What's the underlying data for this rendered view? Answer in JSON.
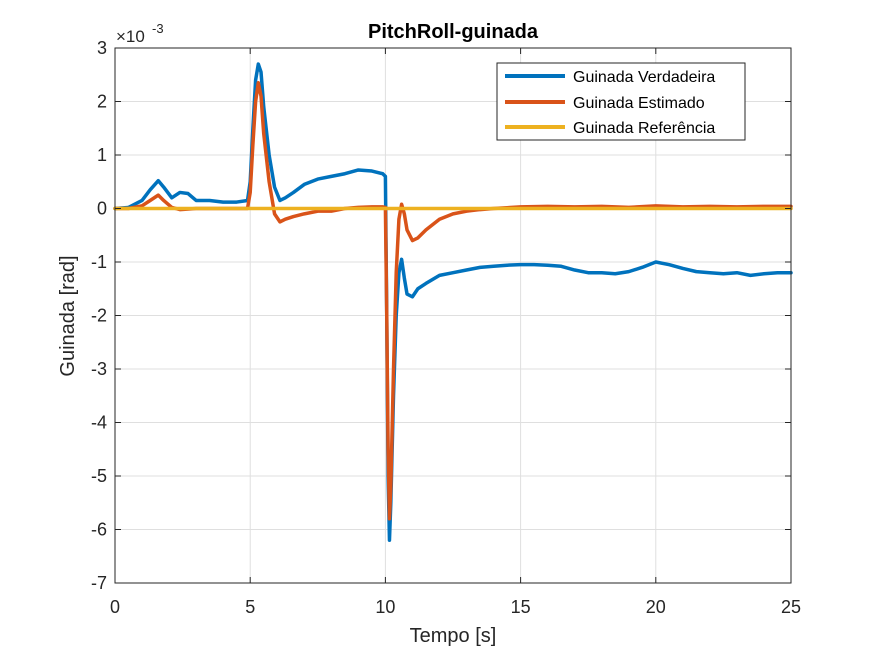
{
  "chart_data": {
    "type": "line",
    "title": "PitchRoll-guinada",
    "xlabel": "Tempo [s]",
    "ylabel": "Guinada [rad]",
    "y_multiplier": "×10",
    "y_multiplier_exponent": "-3",
    "xlim": [
      0,
      25
    ],
    "ylim": [
      -7,
      3
    ],
    "x_ticks": [
      "0",
      "5",
      "10",
      "15",
      "20",
      "25"
    ],
    "y_ticks": [
      "-7",
      "-6",
      "-5",
      "-4",
      "-3",
      "-2",
      "-1",
      "0",
      "1",
      "2",
      "3"
    ],
    "grid": true,
    "legend_position": "top-right",
    "series": [
      {
        "name": "Guinada Verdadeira",
        "color": "#0072BD",
        "x": [
          0,
          0.5,
          1.0,
          1.3,
          1.6,
          1.8,
          2.1,
          2.4,
          2.7,
          3.0,
          3.5,
          4.0,
          4.5,
          4.9,
          5.0,
          5.1,
          5.2,
          5.3,
          5.4,
          5.5,
          5.7,
          5.9,
          6.1,
          6.3,
          6.6,
          7.0,
          7.5,
          8.0,
          8.5,
          9.0,
          9.5,
          9.9,
          10.0,
          10.05,
          10.1,
          10.15,
          10.2,
          10.3,
          10.4,
          10.5,
          10.6,
          10.7,
          10.8,
          11.0,
          11.2,
          11.5,
          12.0,
          12.5,
          13.0,
          13.5,
          14.0,
          14.5,
          15.0,
          15.5,
          16.0,
          16.5,
          17.0,
          17.5,
          18.0,
          18.5,
          19.0,
          19.5,
          20.0,
          20.5,
          21.0,
          21.5,
          22.0,
          22.5,
          23.0,
          23.5,
          24.0,
          24.5,
          25.0
        ],
        "values": [
          0,
          0.02,
          0.15,
          0.35,
          0.52,
          0.4,
          0.2,
          0.3,
          0.28,
          0.15,
          0.15,
          0.12,
          0.12,
          0.15,
          0.5,
          1.5,
          2.4,
          2.7,
          2.55,
          1.9,
          1.0,
          0.4,
          0.15,
          0.2,
          0.3,
          0.45,
          0.55,
          0.6,
          0.65,
          0.72,
          0.7,
          0.65,
          0.6,
          -2.0,
          -5.0,
          -6.2,
          -5.5,
          -3.5,
          -2.0,
          -1.2,
          -0.95,
          -1.3,
          -1.6,
          -1.65,
          -1.5,
          -1.4,
          -1.25,
          -1.2,
          -1.15,
          -1.1,
          -1.08,
          -1.06,
          -1.05,
          -1.05,
          -1.06,
          -1.08,
          -1.15,
          -1.2,
          -1.2,
          -1.22,
          -1.18,
          -1.1,
          -1.0,
          -1.05,
          -1.12,
          -1.18,
          -1.2,
          -1.22,
          -1.2,
          -1.25,
          -1.22,
          -1.2,
          -1.2
        ]
      },
      {
        "name": "Guinada Estimado",
        "color": "#D95319",
        "x": [
          0,
          0.5,
          1.0,
          1.3,
          1.6,
          1.8,
          2.1,
          2.4,
          3.0,
          4.0,
          4.9,
          5.0,
          5.1,
          5.2,
          5.3,
          5.4,
          5.5,
          5.7,
          5.9,
          6.1,
          6.3,
          6.6,
          7.0,
          7.5,
          8.0,
          8.5,
          9.0,
          9.5,
          9.9,
          10.0,
          10.05,
          10.1,
          10.15,
          10.2,
          10.3,
          10.4,
          10.5,
          10.6,
          10.7,
          10.8,
          11.0,
          11.2,
          11.5,
          12.0,
          12.5,
          13.0,
          13.5,
          14.0,
          15.0,
          16.0,
          17.0,
          18.0,
          19.0,
          20.0,
          21.0,
          22.0,
          23.0,
          24.0,
          25.0
        ],
        "values": [
          0,
          0,
          0.05,
          0.15,
          0.25,
          0.15,
          0.02,
          -0.02,
          0,
          0,
          0,
          0.3,
          1.2,
          2.0,
          2.35,
          2.1,
          1.4,
          0.5,
          -0.1,
          -0.25,
          -0.2,
          -0.15,
          -0.1,
          -0.05,
          -0.05,
          0,
          0.02,
          0.03,
          0.03,
          0.02,
          -2.0,
          -4.5,
          -5.8,
          -5.2,
          -3.0,
          -1.2,
          -0.2,
          0.08,
          -0.1,
          -0.4,
          -0.6,
          -0.55,
          -0.4,
          -0.2,
          -0.1,
          -0.05,
          -0.02,
          0,
          0.03,
          0.04,
          0.03,
          0.04,
          0.02,
          0.05,
          0.03,
          0.04,
          0.03,
          0.04,
          0.04
        ]
      },
      {
        "name": "Guinada Referência",
        "color": "#EDB120",
        "x": [
          0,
          25
        ],
        "values": [
          0,
          0
        ]
      }
    ]
  }
}
